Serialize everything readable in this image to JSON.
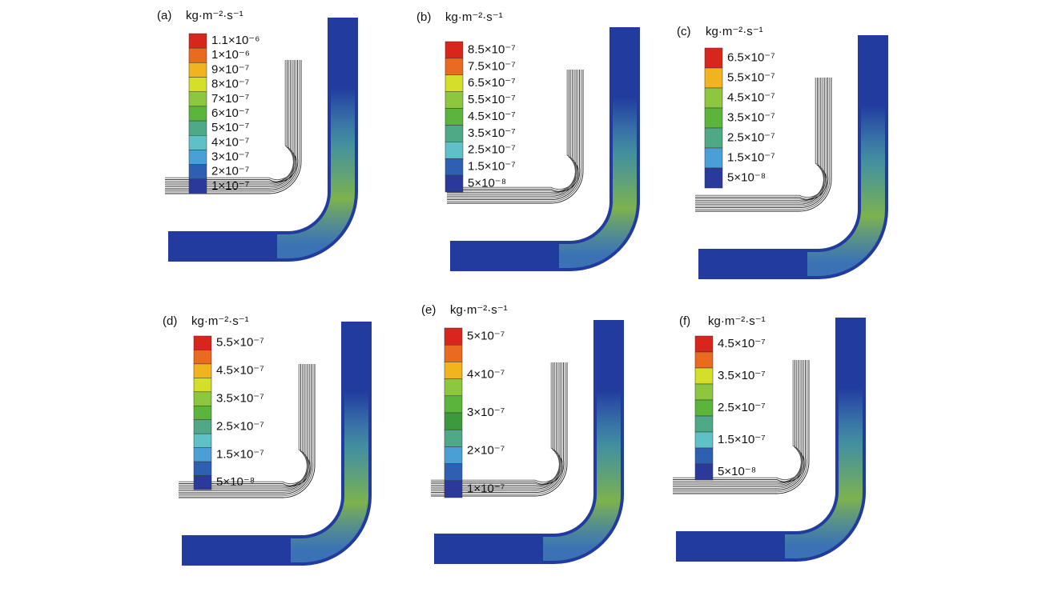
{
  "panels": [
    {
      "label": "(a)",
      "unit": "kg·m⁻²·s⁻¹",
      "legend": [
        "1.1×10⁻⁶",
        "1×10⁻⁶",
        "9×10⁻⁷",
        "8×10⁻⁷",
        "7×10⁻⁷",
        "6×10⁻⁷",
        "5×10⁻⁷",
        "4×10⁻⁷",
        "3×10⁻⁷",
        "2×10⁻⁷",
        "1×10⁻⁷"
      ]
    },
    {
      "label": "(b)",
      "unit": "kg·m⁻²·s⁻¹",
      "legend": [
        "8.5×10⁻⁷",
        "7.5×10⁻⁷",
        "6.5×10⁻⁷",
        "5.5×10⁻⁷",
        "4.5×10⁻⁷",
        "3.5×10⁻⁷",
        "2.5×10⁻⁷",
        "1.5×10⁻⁷",
        "5×10⁻⁸"
      ]
    },
    {
      "label": "(c)",
      "unit": "kg·m⁻²·s⁻¹",
      "legend": [
        "6.5×10⁻⁷",
        "5.5×10⁻⁷",
        "4.5×10⁻⁷",
        "3.5×10⁻⁷",
        "2.5×10⁻⁷",
        "1.5×10⁻⁷",
        "5×10⁻⁸"
      ]
    },
    {
      "label": "(d)",
      "unit": "kg·m⁻²·s⁻¹",
      "legend": [
        "5.5×10⁻⁷",
        "4.5×10⁻⁷",
        "3.5×10⁻⁷",
        "2.5×10⁻⁷",
        "1.5×10⁻⁷",
        "5×10⁻⁸"
      ]
    },
    {
      "label": "(e)",
      "unit": "kg·m⁻²·s⁻¹",
      "legend": [
        "5×10⁻⁷",
        "4×10⁻⁷",
        "3×10⁻⁷",
        "2×10⁻⁷",
        "1×10⁻⁷"
      ]
    },
    {
      "label": "(f)",
      "unit": "kg·m⁻²·s⁻¹",
      "legend": [
        "4.5×10⁻⁷",
        "3.5×10⁻⁷",
        "2.5×10⁻⁷",
        "1.5×10⁻⁷",
        "5×10⁻⁸"
      ]
    }
  ]
}
